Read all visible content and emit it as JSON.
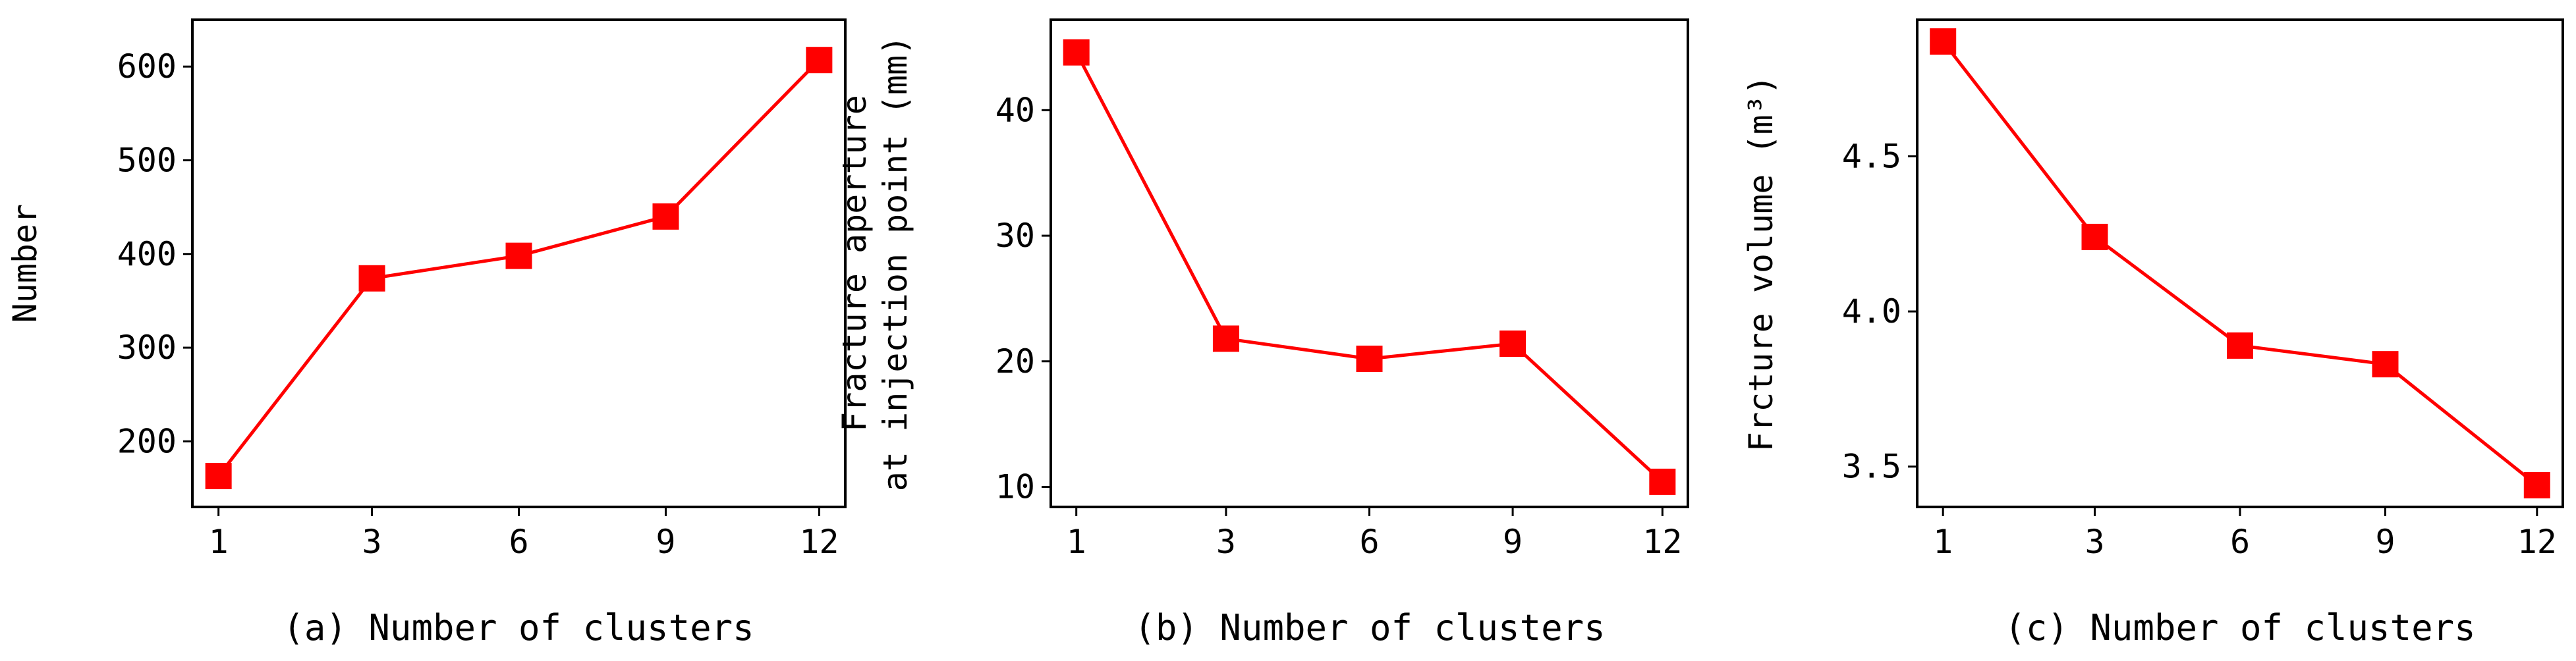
{
  "figure": {
    "background": "#ffffff",
    "line_color": "#ff0000",
    "marker_color": "#ff0000"
  },
  "chart_data": [
    {
      "type": "line",
      "panel": "a",
      "caption": "(a) Number of clusters",
      "xlabel": "",
      "ylabel": "Number",
      "categories": [
        "1",
        "3",
        "6",
        "9",
        "12"
      ],
      "values": [
        163,
        374,
        398,
        440,
        607
      ],
      "ylim": [
        130,
        650
      ],
      "yticks": [
        200,
        300,
        400,
        500,
        600
      ],
      "ytick_labels": [
        "200",
        "300",
        "400",
        "500",
        "600"
      ],
      "grid": false,
      "marker": "square"
    },
    {
      "type": "line",
      "panel": "b",
      "caption": "(b) Number of clusters",
      "xlabel": "",
      "ylabel": [
        "Fracture aperture",
        "at injection point (mm)"
      ],
      "categories": [
        "1",
        "3",
        "6",
        "9",
        "12"
      ],
      "values": [
        44.6,
        21.8,
        20.2,
        21.4,
        10.4
      ],
      "ylim": [
        8.4,
        47.2
      ],
      "yticks": [
        10,
        20,
        30,
        40
      ],
      "ytick_labels": [
        "10",
        "20",
        "30",
        "40"
      ],
      "grid": false,
      "marker": "square"
    },
    {
      "type": "line",
      "panel": "c",
      "caption": "(c) Number of clusters",
      "xlabel": "",
      "ylabel": "Frcture volume (m³)",
      "categories": [
        "1",
        "3",
        "6",
        "9",
        "12"
      ],
      "values": [
        4.87,
        4.24,
        3.89,
        3.83,
        3.44
      ],
      "ylim": [
        3.37,
        4.94
      ],
      "yticks": [
        3.5,
        4.0,
        4.5
      ],
      "ytick_labels": [
        "3.5",
        "4.0",
        "4.5"
      ],
      "grid": false,
      "marker": "square"
    }
  ]
}
